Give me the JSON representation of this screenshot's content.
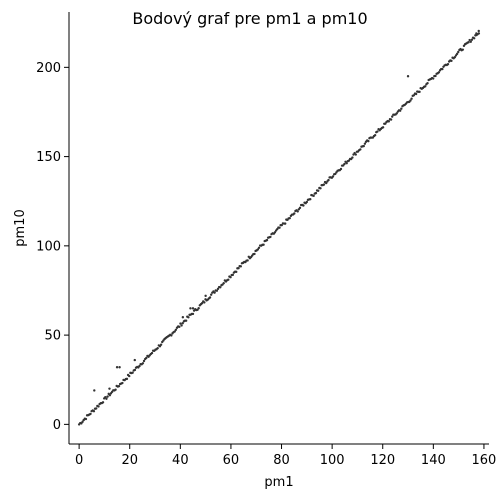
{
  "chart_data": {
    "type": "scatter",
    "title": "Bodový graf pre pm1 a pm10",
    "xlabel": "pm1",
    "ylabel": "pm10",
    "xlim": [
      -4,
      162
    ],
    "ylim": [
      -11,
      231
    ],
    "xticks": [
      0,
      20,
      40,
      60,
      80,
      100,
      120,
      140,
      160
    ],
    "yticks": [
      0,
      50,
      100,
      150,
      200
    ],
    "grid": false,
    "marker_color": "#333333",
    "trend": {
      "x_start": 0,
      "x_end": 158,
      "slope": 1.39,
      "intercept": 0,
      "step": 0.45
    },
    "outliers": [
      {
        "x": 6,
        "y": 19
      },
      {
        "x": 12,
        "y": 20
      },
      {
        "x": 15,
        "y": 32
      },
      {
        "x": 16,
        "y": 32
      },
      {
        "x": 22,
        "y": 36
      },
      {
        "x": 41,
        "y": 60
      },
      {
        "x": 44,
        "y": 65
      },
      {
        "x": 45,
        "y": 65
      },
      {
        "x": 50,
        "y": 72
      },
      {
        "x": 130,
        "y": 195
      },
      {
        "x": 157,
        "y": 219
      },
      {
        "x": 158,
        "y": 219
      }
    ]
  }
}
